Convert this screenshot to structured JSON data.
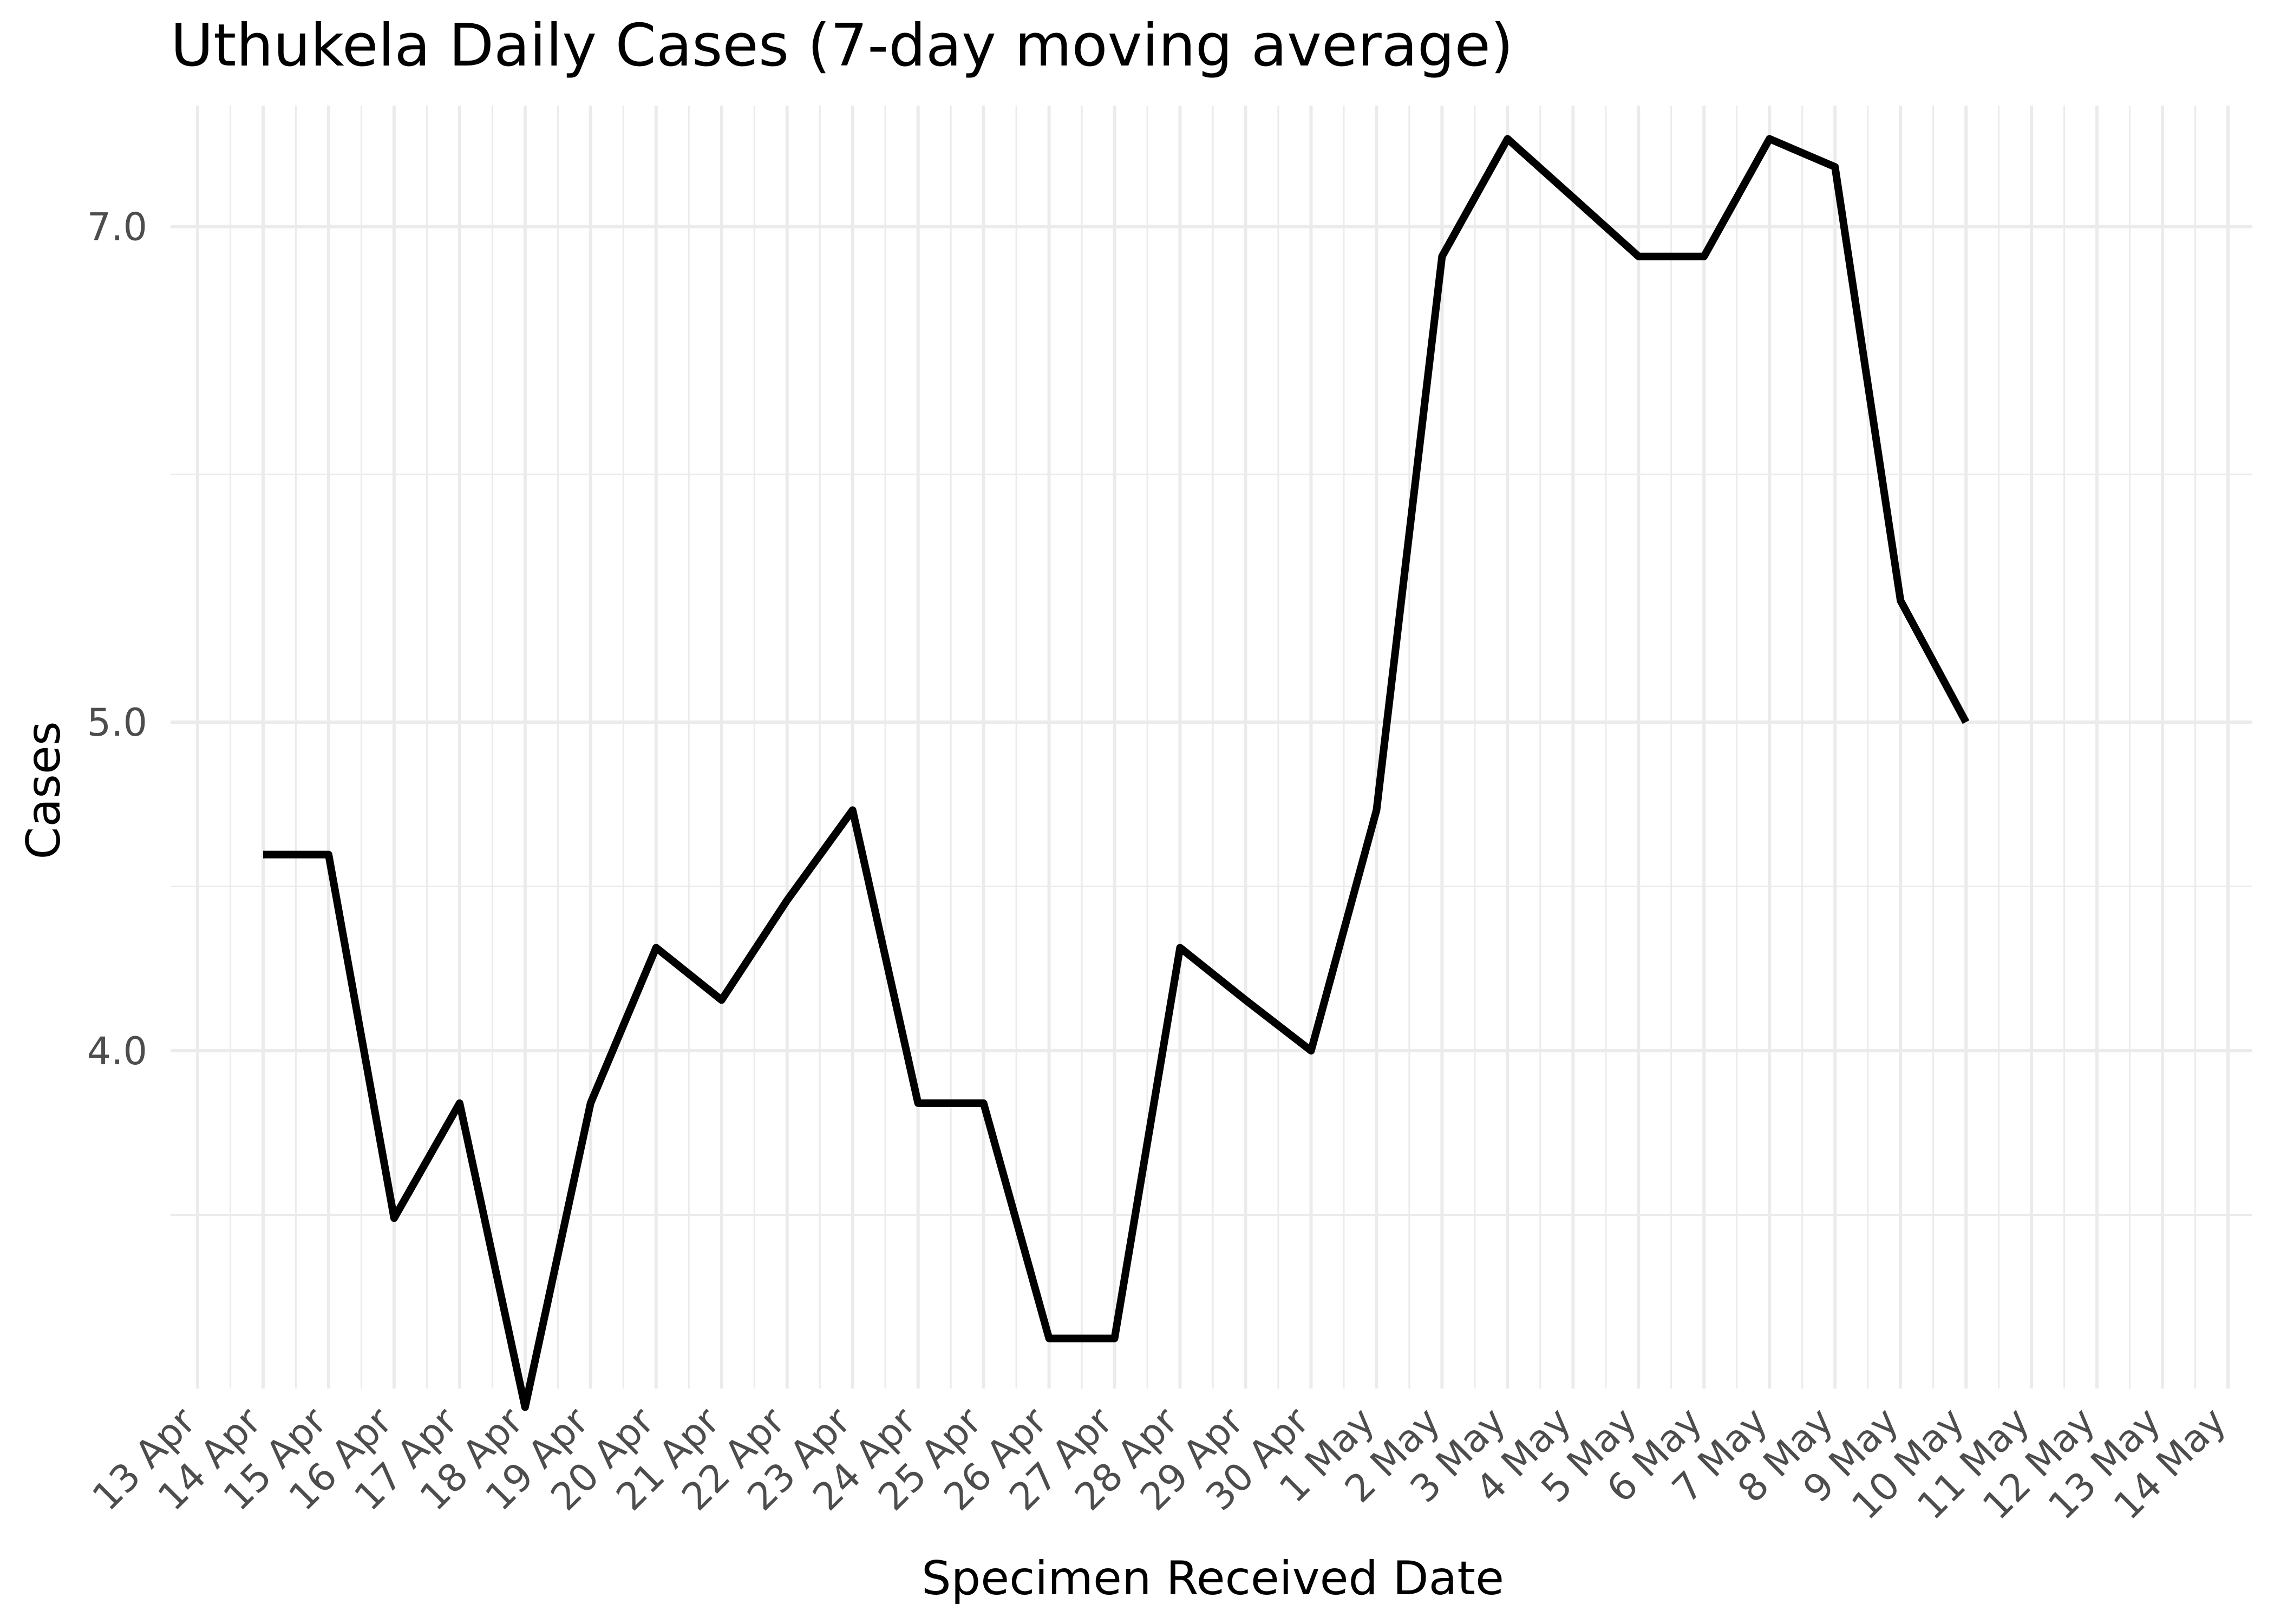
{
  "chart_data": {
    "type": "line",
    "title": "Uthukela Daily Cases (7-day moving average)",
    "xlabel": "Specimen Received Date",
    "ylabel": "Cases",
    "y_scale": "log",
    "ylim": [
      3.18,
      7.6
    ],
    "y_ticks": [
      {
        "value": 4.0,
        "label": "4.0"
      },
      {
        "value": 5.0,
        "label": "5.0"
      },
      {
        "value": 7.0,
        "label": "7.0"
      }
    ],
    "y_minor": [
      3.5,
      4.5,
      6.0
    ],
    "x_range": [
      "2020-04-13",
      "2020-05-14"
    ],
    "x_ticks": [
      {
        "date": "2020-04-13",
        "label": "13 Apr"
      },
      {
        "date": "2020-04-14",
        "label": "14 Apr"
      },
      {
        "date": "2020-04-15",
        "label": "15 Apr"
      },
      {
        "date": "2020-04-16",
        "label": "16 Apr"
      },
      {
        "date": "2020-04-17",
        "label": "17 Apr"
      },
      {
        "date": "2020-04-18",
        "label": "18 Apr"
      },
      {
        "date": "2020-04-19",
        "label": "19 Apr"
      },
      {
        "date": "2020-04-20",
        "label": "20 Apr"
      },
      {
        "date": "2020-04-21",
        "label": "21 Apr"
      },
      {
        "date": "2020-04-22",
        "label": "22 Apr"
      },
      {
        "date": "2020-04-23",
        "label": "23 Apr"
      },
      {
        "date": "2020-04-24",
        "label": "24 Apr"
      },
      {
        "date": "2020-04-25",
        "label": "25 Apr"
      },
      {
        "date": "2020-04-26",
        "label": "26 Apr"
      },
      {
        "date": "2020-04-27",
        "label": "27 Apr"
      },
      {
        "date": "2020-04-28",
        "label": "28 Apr"
      },
      {
        "date": "2020-04-29",
        "label": "29 Apr"
      },
      {
        "date": "2020-04-30",
        "label": "30 Apr"
      },
      {
        "date": "2020-05-01",
        "label": "1 May"
      },
      {
        "date": "2020-05-02",
        "label": "2 May"
      },
      {
        "date": "2020-05-03",
        "label": "3 May"
      },
      {
        "date": "2020-05-04",
        "label": "4 May"
      },
      {
        "date": "2020-05-05",
        "label": "5 May"
      },
      {
        "date": "2020-05-06",
        "label": "6 May"
      },
      {
        "date": "2020-05-07",
        "label": "7 May"
      },
      {
        "date": "2020-05-08",
        "label": "8 May"
      },
      {
        "date": "2020-05-09",
        "label": "9 May"
      },
      {
        "date": "2020-05-10",
        "label": "10 May"
      },
      {
        "date": "2020-05-11",
        "label": "11 May"
      },
      {
        "date": "2020-05-12",
        "label": "12 May"
      },
      {
        "date": "2020-05-13",
        "label": "13 May"
      },
      {
        "date": "2020-05-14",
        "label": "14 May"
      }
    ],
    "grid": true,
    "color": "#000000",
    "series": [
      {
        "points": [
          {
            "x": "2020-04-14",
            "y": 4.57
          },
          {
            "x": "2020-04-15",
            "y": 4.57
          },
          {
            "x": "2020-04-16",
            "y": 3.57
          },
          {
            "x": "2020-04-17",
            "y": 3.86
          },
          {
            "x": "2020-04-18",
            "y": 3.14
          },
          {
            "x": "2020-04-19",
            "y": 3.86
          },
          {
            "x": "2020-04-20",
            "y": 4.29
          },
          {
            "x": "2020-04-21",
            "y": 4.14
          },
          {
            "x": "2020-04-22",
            "y": 4.43
          },
          {
            "x": "2020-04-23",
            "y": 4.71
          },
          {
            "x": "2020-04-24",
            "y": 3.86
          },
          {
            "x": "2020-04-25",
            "y": 3.86
          },
          {
            "x": "2020-04-26",
            "y": 3.29
          },
          {
            "x": "2020-04-27",
            "y": 3.29
          },
          {
            "x": "2020-04-28",
            "y": 4.29
          },
          {
            "x": "2020-04-29",
            "y": 4.14
          },
          {
            "x": "2020-04-30",
            "y": 4.0
          },
          {
            "x": "2020-05-01",
            "y": 4.71
          },
          {
            "x": "2020-05-02",
            "y": 6.86
          },
          {
            "x": "2020-05-03",
            "y": 7.43
          },
          {
            "x": "2020-05-04",
            "y": 7.14
          },
          {
            "x": "2020-05-05",
            "y": 6.86
          },
          {
            "x": "2020-05-06",
            "y": 6.86
          },
          {
            "x": "2020-05-07",
            "y": 7.43
          },
          {
            "x": "2020-05-08",
            "y": 7.29
          },
          {
            "x": "2020-05-09",
            "y": 5.43
          },
          {
            "x": "2020-05-10",
            "y": 5.0
          }
        ]
      }
    ]
  }
}
